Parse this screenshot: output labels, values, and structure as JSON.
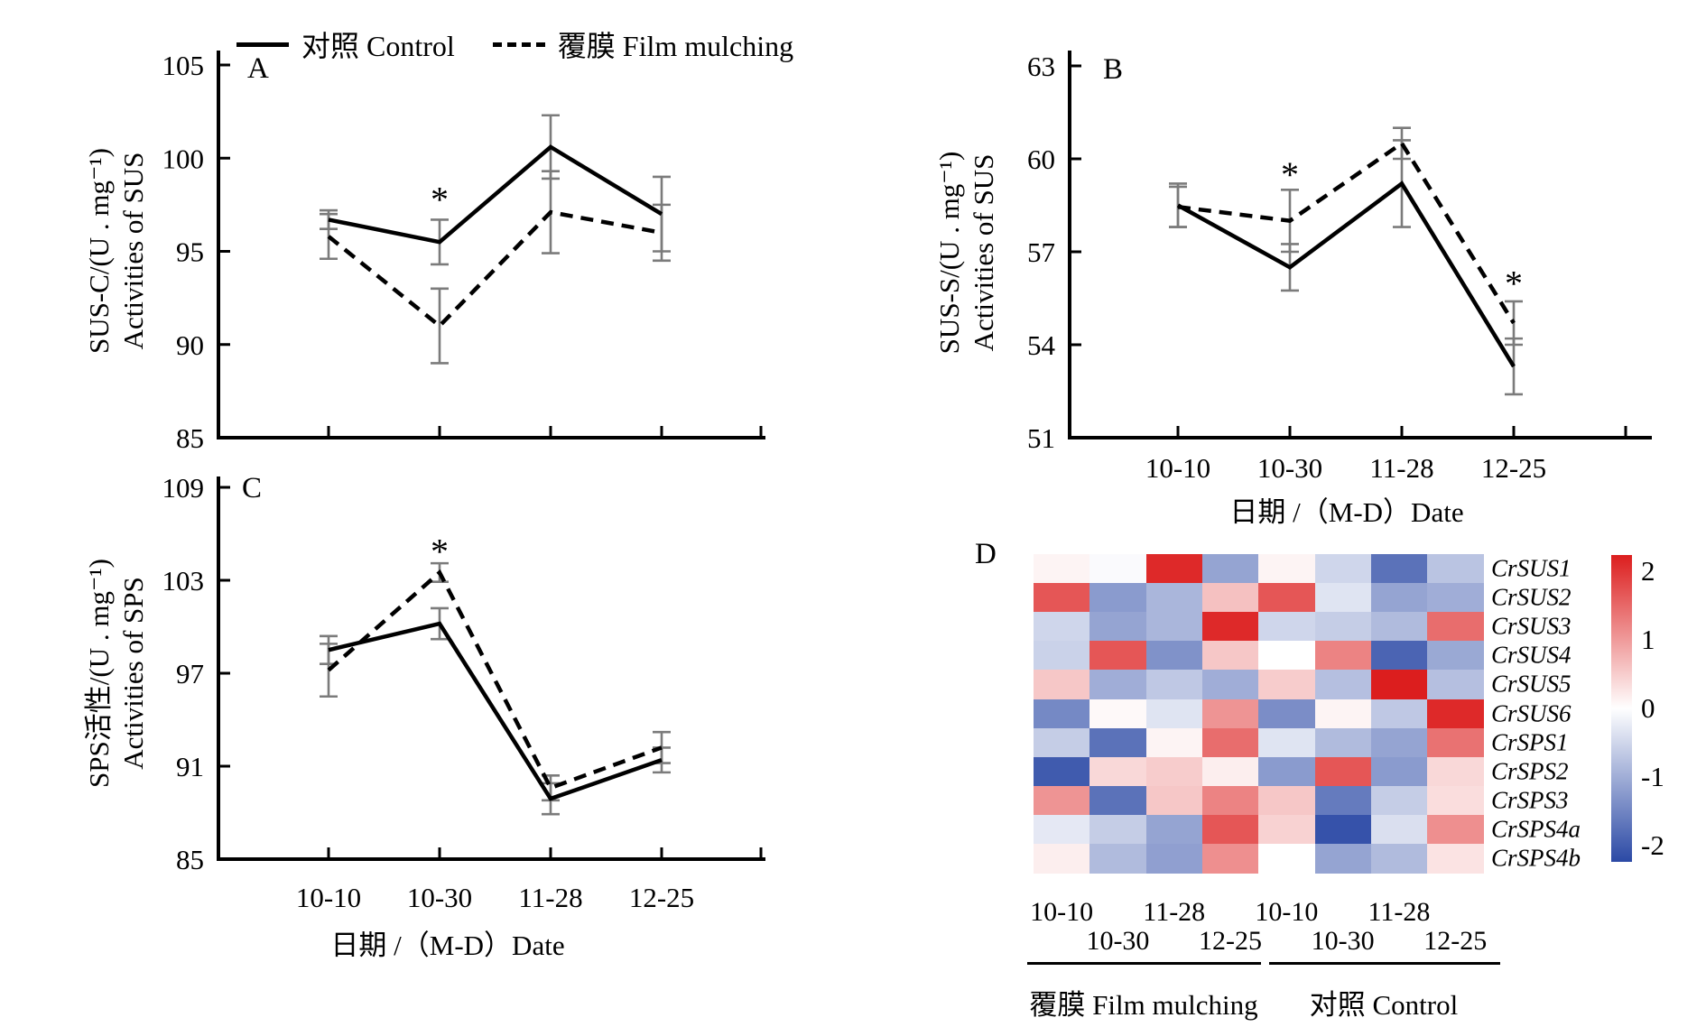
{
  "legend": {
    "items": [
      {
        "label": "对照 Control",
        "style": "solid"
      },
      {
        "label": "覆膜 Film mulching",
        "style": "dashed"
      }
    ]
  },
  "colors": {
    "series": "#000000",
    "error_bar": "#7b7b7b",
    "heat_max": "#DC1E1E",
    "heat_mid": "#FFFFFF",
    "heat_min": "#2B49A5"
  },
  "chart_data": {
    "panelA": {
      "type": "line",
      "label": "A",
      "ylabel_line1": "SUS-C/(U . mg⁻¹)",
      "ylabel_line2": "Activities of SUS",
      "yticks": [
        105,
        100,
        95,
        90,
        85
      ],
      "ylim": [
        85,
        105
      ],
      "categories": [
        "10-10",
        "10-30",
        "11-28",
        "12-25"
      ],
      "show_x_labels": false,
      "xlabel": "",
      "series": [
        {
          "name": "对照 Control",
          "style": "solid",
          "values": [
            96.7,
            95.5,
            100.6,
            97.0
          ],
          "errors": [
            0.5,
            1.2,
            1.7,
            2.0
          ]
        },
        {
          "name": "覆膜 Film mulching",
          "style": "dashed",
          "values": [
            95.8,
            91.0,
            97.1,
            96.0
          ],
          "errors": [
            1.2,
            2.0,
            2.2,
            1.5
          ]
        }
      ],
      "asterisks": [
        {
          "category_index": 1,
          "value": 97.8
        }
      ]
    },
    "panelB": {
      "type": "line",
      "label": "B",
      "ylabel_line1": "SUS-S/(U . mg⁻¹)",
      "ylabel_line2": "Activities of SUS",
      "yticks": [
        63,
        60,
        57,
        54,
        51
      ],
      "ylim": [
        51,
        63
      ],
      "categories": [
        "10-10",
        "10-30",
        "11-28",
        "12-25"
      ],
      "show_x_labels": true,
      "xlabel": "日期 /（M-D）Date",
      "series": [
        {
          "name": "对照 Control",
          "style": "solid",
          "values": [
            58.5,
            56.5,
            59.2,
            53.3
          ],
          "errors": [
            0.7,
            0.75,
            1.4,
            0.9
          ]
        },
        {
          "name": "覆膜 Film mulching",
          "style": "dashed",
          "values": [
            58.45,
            58.0,
            60.5,
            54.7
          ],
          "errors": [
            0.65,
            1.0,
            0.5,
            0.7
          ]
        }
      ],
      "asterisks": [
        {
          "category_index": 1,
          "value": 59.5
        },
        {
          "category_index": 3,
          "value": 56.0
        }
      ]
    },
    "panelC": {
      "type": "line",
      "label": "C",
      "ylabel_line1": "SPS活性/(U . mg⁻¹)",
      "ylabel_line2": "Activities of SPS",
      "yticks": [
        109,
        103,
        97,
        91,
        85
      ],
      "ylim": [
        85,
        109
      ],
      "categories": [
        "10-10",
        "10-30",
        "11-28",
        "12-25"
      ],
      "show_x_labels": true,
      "xlabel": "日期 /（M-D）Date",
      "series": [
        {
          "name": "对照 Control",
          "style": "solid",
          "values": [
            98.5,
            100.2,
            88.9,
            91.4
          ],
          "errors": [
            0.9,
            1.0,
            1.0,
            0.8
          ]
        },
        {
          "name": "覆膜 Film mulching",
          "style": "dashed",
          "values": [
            97.2,
            103.5,
            89.6,
            92.2
          ],
          "errors": [
            1.7,
            0.6,
            0.8,
            1.0
          ]
        }
      ],
      "asterisks": [
        {
          "category_index": 1,
          "value": 104.9
        }
      ]
    },
    "panelD": {
      "type": "heatmap",
      "label": "D",
      "rows": [
        "CrSUS1",
        "CrSUS2",
        "CrSUS3",
        "CrSUS4",
        "CrSUS5",
        "CrSUS6",
        "CrSPS1",
        "CrSPS2",
        "CrSPS3",
        "CrSPS4a",
        "CrSPS4b"
      ],
      "col_dates": [
        "10-10",
        "10-30",
        "11-28",
        "12-25",
        "10-10",
        "10-30",
        "11-28",
        "12-25"
      ],
      "group_labels": [
        "覆膜 Film mulching",
        "对照 Control"
      ],
      "values": [
        [
          0.1,
          -0.05,
          1.9,
          -1.0,
          0.1,
          -0.45,
          -1.55,
          -0.65
        ],
        [
          1.5,
          -1.1,
          -0.8,
          0.55,
          1.5,
          -0.3,
          -1.0,
          -0.9
        ],
        [
          -0.45,
          -1.0,
          -0.8,
          1.9,
          -0.45,
          -0.55,
          -0.75,
          1.3
        ],
        [
          -0.5,
          1.5,
          -1.2,
          0.5,
          0.0,
          1.1,
          -1.7,
          -0.95
        ],
        [
          0.5,
          -0.9,
          -0.6,
          -0.9,
          0.45,
          -0.7,
          2.0,
          -0.7
        ],
        [
          -1.3,
          0.05,
          -0.3,
          0.95,
          -1.25,
          0.1,
          -0.6,
          1.9
        ],
        [
          -0.55,
          -1.55,
          0.1,
          1.3,
          -0.3,
          -0.75,
          -1.0,
          1.25
        ],
        [
          -1.8,
          0.35,
          0.45,
          0.15,
          -1.1,
          1.5,
          -1.1,
          0.35
        ],
        [
          0.95,
          -1.55,
          0.5,
          1.1,
          0.5,
          -1.45,
          -0.55,
          0.3
        ],
        [
          -0.25,
          -0.55,
          -1.0,
          1.5,
          0.4,
          -1.9,
          -0.35,
          1.0
        ],
        [
          0.15,
          -0.75,
          -1.05,
          1.0,
          0.0,
          -1.0,
          -0.75,
          0.25
        ]
      ],
      "colorbar": {
        "ticks": [
          "2",
          "1",
          "0",
          "-1",
          "-2"
        ],
        "vmax": 2,
        "vmin": -2
      }
    }
  }
}
